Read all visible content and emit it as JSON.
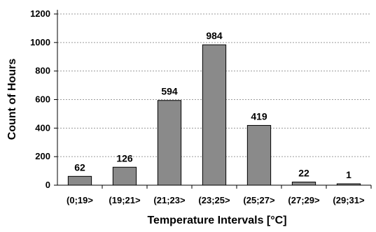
{
  "chart_data": {
    "type": "bar",
    "title": "",
    "xlabel": "Temperature Intervals [°C]",
    "ylabel": "Count of Hours",
    "categories": [
      "(0;19>",
      "(19;21>",
      "(21;23>",
      "(23;25>",
      "(25;27>",
      "(27;29>",
      "(29;31>"
    ],
    "values": [
      62,
      126,
      594,
      984,
      419,
      22,
      1
    ],
    "data_labels": [
      "62",
      "126",
      "594",
      "984",
      "419",
      "22",
      "1"
    ],
    "ylim": [
      0,
      1200
    ],
    "yticks": [
      0,
      200,
      400,
      600,
      800,
      1000,
      1200
    ],
    "ytick_labels": [
      "0",
      "200",
      "400",
      "600",
      "800",
      "1000",
      "1200"
    ],
    "grid": "horizontal dotted",
    "legend": "none",
    "colors": {
      "bar_fill": "#8a8a8a",
      "bar_stroke": "#000000",
      "grid": "#9a9a9a",
      "axis": "#000000"
    }
  }
}
